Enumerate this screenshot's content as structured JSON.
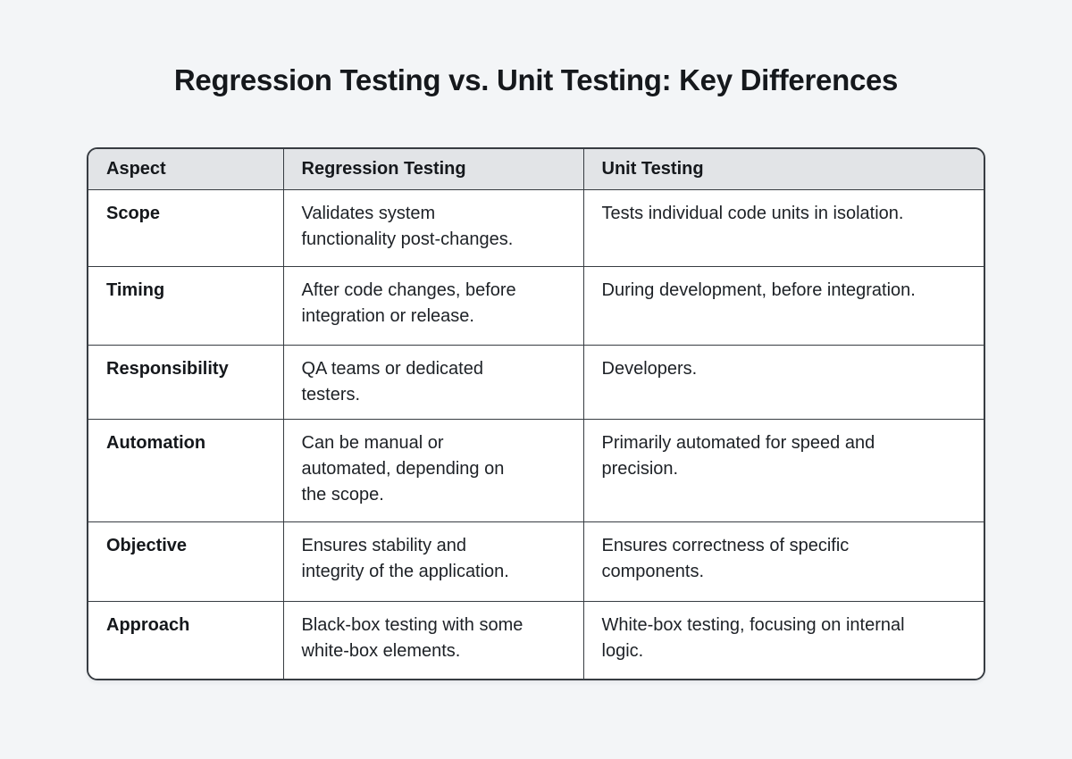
{
  "page": {
    "background": "#f3f5f7",
    "title": "Regression Testing vs. Unit Testing: Key Differences"
  },
  "table": {
    "style": {
      "border_color": "#373c42",
      "header_background": "#e2e4e7",
      "body_background": "#ffffff",
      "text_color": "#1d2126"
    },
    "headers": [
      "Aspect",
      "Regression Testing",
      "Unit Testing"
    ],
    "rows": [
      {
        "aspect": "Scope",
        "regression": "Validates system\nfunctionality post-changes.",
        "unit": "Tests individual code units in isolation."
      },
      {
        "aspect": "Timing",
        "regression": "After code changes, before\nintegration or release.",
        "unit": "During development, before integration."
      },
      {
        "aspect": "Responsibility",
        "regression": "QA teams or dedicated\ntesters.",
        "unit": "Developers."
      },
      {
        "aspect": "Automation",
        "regression": "Can be manual or\nautomated, depending on\nthe scope.",
        "unit": "Primarily automated for speed and\nprecision."
      },
      {
        "aspect": "Objective",
        "regression": "Ensures stability and\nintegrity of the application.",
        "unit": "Ensures correctness of specific\ncomponents."
      },
      {
        "aspect": "Approach",
        "regression": "Black-box testing with some\nwhite-box elements.",
        "unit": "White-box testing, focusing on internal\nlogic."
      }
    ]
  }
}
